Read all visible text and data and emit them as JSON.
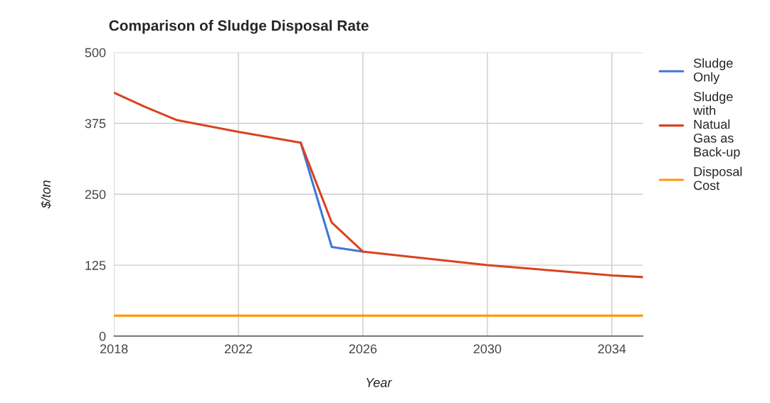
{
  "chart_data": {
    "type": "line",
    "title": "Comparison of Sludge Disposal Rate",
    "xlabel": "Year",
    "ylabel": "$/ton",
    "x": [
      2018,
      2019,
      2020,
      2022,
      2024,
      2025,
      2026,
      2028,
      2030,
      2032,
      2034,
      2035
    ],
    "series": [
      {
        "name": "Sludge\nOnly",
        "color": "#3c78d8",
        "values": [
          null,
          null,
          null,
          null,
          341,
          157,
          149,
          null,
          null,
          null,
          null,
          null
        ]
      },
      {
        "name": "Sludge\nwith\nNatual\nGas as\nBack-up",
        "color": "#d9431f",
        "values": [
          429,
          404,
          381,
          360,
          341,
          200,
          149,
          137,
          125,
          116,
          107,
          104
        ]
      },
      {
        "name": "Disposal\nCost",
        "color": "#ff9900",
        "x": [
          2018,
          2035
        ],
        "values": [
          36,
          36
        ]
      }
    ],
    "xlim": [
      2018,
      2035
    ],
    "xticks": [
      2018,
      2022,
      2026,
      2030,
      2034
    ],
    "ylim": [
      0,
      500
    ],
    "yticks": [
      0,
      125,
      250,
      375,
      500
    ],
    "grid": true,
    "legend": "right",
    "marker": "none",
    "line_style": "solid"
  }
}
